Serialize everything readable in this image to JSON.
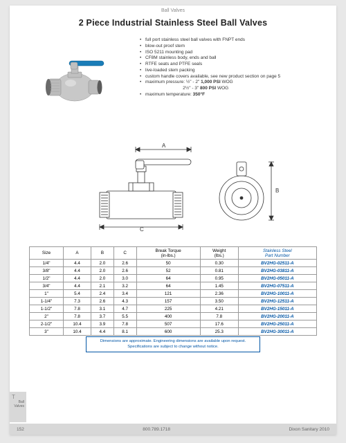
{
  "header": {
    "category": "Ball Valves"
  },
  "title": "2 Piece Industrial Stainless Steel Ball Valves",
  "bullets": [
    "full port stainless steel ball valves with FNPT ends",
    "blow-out proof stem",
    "ISO 5211 mounting pad",
    "CF8M stainless body, ends and ball",
    "RTFE seats and PTFE seals",
    "live-loaded stem packing",
    "custom handle covers available, see new product section on page 5",
    "maximum pressure: ½\" - 2\" 1,000 PSI WOG",
    "                              2½\" - 3\" 800 PSI WOG",
    "maximum temperature: 350°F"
  ],
  "diagram_labels": {
    "a": "A",
    "b": "B",
    "c": "C"
  },
  "table": {
    "headers": [
      "Size",
      "A",
      "B",
      "C",
      "Break Torque (in-lbs.)",
      "Weight (lbs.)",
      "Stainless Steel Part Number"
    ],
    "rows": [
      [
        "1/4\"",
        "4.4",
        "2.0",
        "2.6",
        "50",
        "0.30",
        "BV2HG-02511-A"
      ],
      [
        "3/8\"",
        "4.4",
        "2.0",
        "2.6",
        "52",
        "0.81",
        "BV2HG-03811-A"
      ],
      [
        "1/2\"",
        "4.4",
        "2.0",
        "3.0",
        "64",
        "0.95",
        "BV2HG-05011-A"
      ],
      [
        "3/4\"",
        "4.4",
        "2.1",
        "3.2",
        "64",
        "1.45",
        "BV2HG-07511-A"
      ],
      [
        "1\"",
        "5.4",
        "2.4",
        "3.4",
        "121",
        "2.36",
        "BV2HG-10011-A"
      ],
      [
        "1-1/4\"",
        "7.3",
        "2.6",
        "4.3",
        "157",
        "3.50",
        "BV2HG-12511-A"
      ],
      [
        "1-1/2\"",
        "7.8",
        "3.1",
        "4.7",
        "225",
        "4.21",
        "BV2HG-15011-A"
      ],
      [
        "2\"",
        "7.8",
        "3.7",
        "5.5",
        "400",
        "7.8",
        "BV2HG-20011-A"
      ],
      [
        "2-1/2\"",
        "10.4",
        "3.9",
        "7.8",
        "507",
        "17.6",
        "BV2HG-25011-A"
      ],
      [
        "3\"",
        "10.4",
        "4.4",
        "8.1",
        "600",
        "25.3",
        "BV2HG-30011-A"
      ]
    ]
  },
  "note": {
    "line1": "Dimensions are approximate. Engineering dimensions are available upon request.",
    "line2": "Specifications are subject to change without notice."
  },
  "sidetab": {
    "letter": "T",
    "line1": "Ball",
    "line2": "Valves"
  },
  "footer": {
    "page": "152",
    "phone": "800.789.1718",
    "edition": "Dixon Sanitary 2010"
  },
  "colors": {
    "handle": "#1a7db8",
    "steel_light": "#d5d5d5",
    "steel_mid": "#b8b8b8",
    "steel_dark": "#8a8a8a",
    "accent": "#0055a5"
  }
}
